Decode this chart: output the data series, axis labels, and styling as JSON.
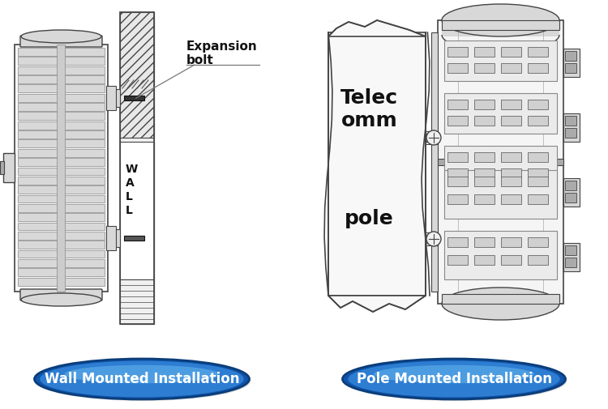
{
  "background_color": "#ffffff",
  "left_label": "Wall Mounted Installation",
  "right_label": "Pole Mounted Installation",
  "expansion_bolt_text": "Expansion\nbolt",
  "wall_text": "W\nA\nL\nL",
  "label_text_color": "#ffffff",
  "label_fontsize": 12,
  "annotation_fontsize": 11,
  "wall_fontsize": 10,
  "pole_fontsize": 18,
  "line_color": "#444444",
  "fill_light": "#f0f0f0",
  "fill_mid": "#d8d8d8",
  "fill_dark": "#aaaaaa",
  "hatch_fill": "#e8e8e8"
}
